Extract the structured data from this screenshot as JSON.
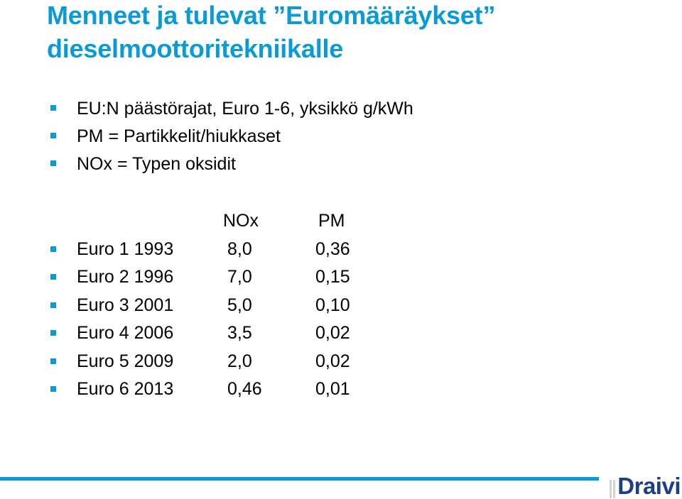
{
  "title": {
    "line1": "Menneet ja tulevat ”Euromääräykset”",
    "line2": "dieselmoottoritekniikalle"
  },
  "bullets": [
    "EU:N päästörajat, Euro 1-6, yksikkö g/kWh",
    "PM = Partikkelit/hiukkaset",
    "NOx = Typen oksidit"
  ],
  "table": {
    "headers": {
      "nox": "NOx",
      "pm": "PM"
    },
    "rows": [
      {
        "label": "Euro 1 1993",
        "nox": "8,0",
        "pm": "0,36"
      },
      {
        "label": "Euro 2 1996",
        "nox": "7,0",
        "pm": "0,15"
      },
      {
        "label": "Euro 3 2001",
        "nox": "5,0",
        "pm": "0,10"
      },
      {
        "label": "Euro 4 2006",
        "nox": "3,5",
        "pm": "0,02"
      },
      {
        "label": "Euro 5 2009",
        "nox": "2,0",
        "pm": "0,02"
      },
      {
        "label": "Euro 6 2013",
        "nox": "0,46",
        "pm": "0,01"
      }
    ]
  },
  "footer": {
    "logo_text": "Draivi"
  },
  "colors": {
    "accent": "#0a9ad6",
    "logo_text": "#1d3f8a",
    "logo_stripes": "#d7d3cc"
  }
}
